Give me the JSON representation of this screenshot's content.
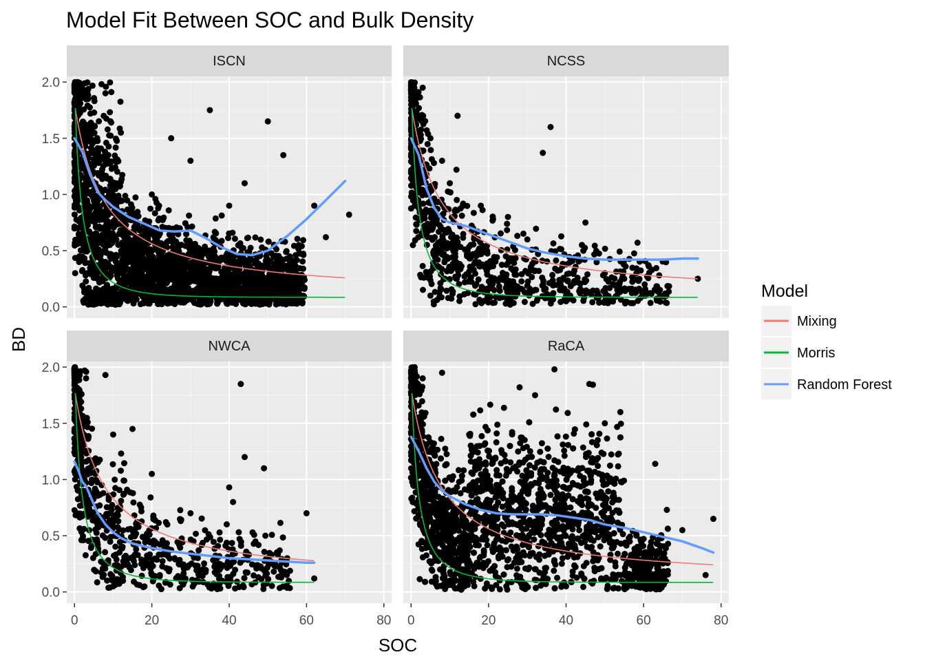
{
  "chart_data": {
    "type": "scatter",
    "title": "Model Fit Between SOC and Bulk Density",
    "xlabel": "SOC",
    "ylabel": "BD",
    "xlim": [
      -2,
      82
    ],
    "ylim": [
      -0.1,
      2.05
    ],
    "x_ticks": [
      0,
      20,
      40,
      60,
      80
    ],
    "y_ticks": [
      0.0,
      0.5,
      1.0,
      1.5,
      2.0
    ],
    "y_tick_labels": [
      "0.0",
      "0.5",
      "1.0",
      "1.5",
      "2.0"
    ],
    "grid": true,
    "legend": {
      "title": "Model",
      "position": "right",
      "entries": [
        {
          "name": "Mixing",
          "color": "#F8766D"
        },
        {
          "name": "Morris",
          "color": "#00BA38"
        },
        {
          "name": "Random Forest",
          "color": "#619CFF"
        }
      ]
    },
    "panels": [
      {
        "name": "ISCN",
        "x_max": 70,
        "rf": [
          [
            0,
            1.5
          ],
          [
            2,
            1.38
          ],
          [
            4,
            1.18
          ],
          [
            6,
            1.02
          ],
          [
            8,
            0.95
          ],
          [
            10,
            0.89
          ],
          [
            14,
            0.8
          ],
          [
            18,
            0.74
          ],
          [
            22,
            0.68
          ],
          [
            26,
            0.67
          ],
          [
            30,
            0.68
          ],
          [
            34,
            0.61
          ],
          [
            38,
            0.53
          ],
          [
            42,
            0.47
          ],
          [
            46,
            0.46
          ],
          [
            50,
            0.5
          ],
          [
            55,
            0.63
          ],
          [
            60,
            0.78
          ],
          [
            65,
            0.95
          ],
          [
            70,
            1.12
          ]
        ],
        "points_sample": [
          [
            1,
            1.9
          ],
          [
            2,
            1.6
          ],
          [
            3,
            1.2
          ],
          [
            5,
            0.9
          ],
          [
            8,
            1.9
          ],
          [
            12,
            1.55
          ],
          [
            20,
            1.0
          ],
          [
            25,
            1.5
          ],
          [
            30,
            1.3
          ],
          [
            35,
            1.75
          ],
          [
            40,
            0.9
          ],
          [
            44,
            1.1
          ],
          [
            50,
            1.65
          ],
          [
            54,
            1.35
          ],
          [
            58,
            0.55
          ],
          [
            62,
            0.9
          ],
          [
            65,
            0.62
          ],
          [
            71,
            0.82
          ],
          [
            45,
            0.2
          ],
          [
            20,
            0.1
          ]
        ]
      },
      {
        "name": "NCSS",
        "x_max": 74,
        "rf": [
          [
            0,
            1.5
          ],
          [
            2,
            1.35
          ],
          [
            4,
            1.05
          ],
          [
            6,
            0.88
          ],
          [
            8,
            0.78
          ],
          [
            10,
            0.75
          ],
          [
            14,
            0.72
          ],
          [
            18,
            0.67
          ],
          [
            22,
            0.62
          ],
          [
            26,
            0.57
          ],
          [
            30,
            0.52
          ],
          [
            35,
            0.48
          ],
          [
            40,
            0.45
          ],
          [
            45,
            0.43
          ],
          [
            50,
            0.42
          ],
          [
            55,
            0.42
          ],
          [
            60,
            0.42
          ],
          [
            65,
            0.42
          ],
          [
            70,
            0.43
          ],
          [
            74,
            0.43
          ]
        ],
        "points_sample": [
          [
            1,
            1.9
          ],
          [
            3,
            1.95
          ],
          [
            5,
            1.5
          ],
          [
            8,
            1.3
          ],
          [
            10,
            1.1
          ],
          [
            12,
            1.7
          ],
          [
            18,
            0.9
          ],
          [
            25,
            0.8
          ],
          [
            30,
            0.6
          ],
          [
            36,
            1.6
          ],
          [
            34,
            1.37
          ],
          [
            45,
            0.75
          ],
          [
            50,
            0.3
          ],
          [
            55,
            0.25
          ],
          [
            74,
            0.25
          ],
          [
            5,
            0.1
          ],
          [
            20,
            0.1
          ],
          [
            40,
            0.05
          ]
        ]
      },
      {
        "name": "NWCA",
        "x_max": 62,
        "rf": [
          [
            0,
            1.16
          ],
          [
            1,
            1.08
          ],
          [
            2,
            0.98
          ],
          [
            3,
            0.94
          ],
          [
            4,
            0.86
          ],
          [
            5,
            0.78
          ],
          [
            6,
            0.7
          ],
          [
            8,
            0.6
          ],
          [
            10,
            0.53
          ],
          [
            12,
            0.48
          ],
          [
            15,
            0.43
          ],
          [
            20,
            0.39
          ],
          [
            25,
            0.36
          ],
          [
            30,
            0.34
          ],
          [
            35,
            0.32
          ],
          [
            40,
            0.3
          ],
          [
            45,
            0.29
          ],
          [
            50,
            0.28
          ],
          [
            55,
            0.27
          ],
          [
            60,
            0.26
          ],
          [
            62,
            0.26
          ]
        ],
        "points_sample": [
          [
            1,
            1.95
          ],
          [
            3,
            1.9
          ],
          [
            8,
            1.93
          ],
          [
            10,
            1.4
          ],
          [
            15,
            1.45
          ],
          [
            20,
            1.05
          ],
          [
            24,
            0.6
          ],
          [
            30,
            0.7
          ],
          [
            40,
            0.93
          ],
          [
            41,
            0.8
          ],
          [
            43,
            1.85
          ],
          [
            44,
            1.2
          ],
          [
            49,
            1.1
          ],
          [
            60,
            0.7
          ],
          [
            55,
            0.3
          ],
          [
            62,
            0.12
          ],
          [
            10,
            0.05
          ],
          [
            35,
            0.05
          ]
        ]
      },
      {
        "name": "RaCA",
        "x_max": 78,
        "rf": [
          [
            0,
            1.38
          ],
          [
            2,
            1.25
          ],
          [
            4,
            1.1
          ],
          [
            6,
            0.98
          ],
          [
            8,
            0.9
          ],
          [
            10,
            0.85
          ],
          [
            14,
            0.78
          ],
          [
            18,
            0.73
          ],
          [
            22,
            0.7
          ],
          [
            26,
            0.69
          ],
          [
            30,
            0.69
          ],
          [
            34,
            0.69
          ],
          [
            38,
            0.68
          ],
          [
            42,
            0.66
          ],
          [
            46,
            0.64
          ],
          [
            50,
            0.6
          ],
          [
            55,
            0.57
          ],
          [
            60,
            0.53
          ],
          [
            65,
            0.49
          ],
          [
            70,
            0.45
          ],
          [
            75,
            0.39
          ],
          [
            78,
            0.35
          ]
        ],
        "points_sample": [
          [
            1,
            1.95
          ],
          [
            3,
            1.9
          ],
          [
            8,
            1.95
          ],
          [
            15,
            1.4
          ],
          [
            20,
            1.25
          ],
          [
            28,
            1.82
          ],
          [
            32,
            1.75
          ],
          [
            37,
            1.98
          ],
          [
            46,
            1.85
          ],
          [
            50,
            1.5
          ],
          [
            54,
            1.6
          ],
          [
            63,
            1.14
          ],
          [
            66,
            0.73
          ],
          [
            70,
            0.55
          ],
          [
            76,
            0.15
          ],
          [
            78,
            0.65
          ],
          [
            10,
            0.1
          ],
          [
            40,
            0.05
          ],
          [
            60,
            0.3
          ]
        ]
      }
    ],
    "mixing_curve": "BD = 1 / (SOC/0.12 + (100-SOC)/1.7) * 100 approx; asymptote ~0.12",
    "morris_curve": "asymptote ~0.09"
  }
}
